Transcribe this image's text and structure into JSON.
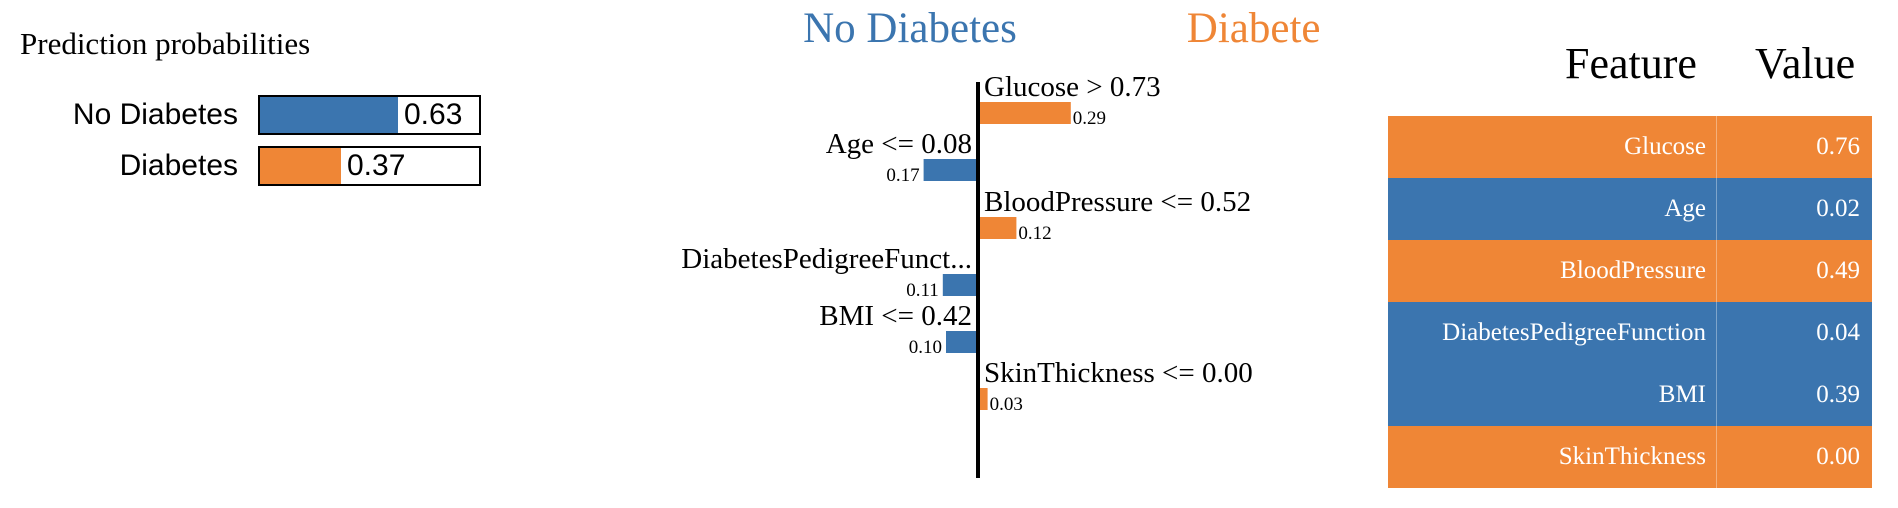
{
  "colors": {
    "no_diabetes": "#3b75af",
    "diabetes": "#ef8636"
  },
  "proba": {
    "title": "Prediction probabilities",
    "rows": [
      {
        "label": "No Diabetes",
        "value": 0.63,
        "value_text": "0.63",
        "color": "#3b75af"
      },
      {
        "label": "Diabetes",
        "value": 0.37,
        "value_text": "0.37",
        "color": "#ef8636"
      }
    ]
  },
  "explanation": {
    "left_class": "No Diabetes",
    "right_class": "Diabetes"
  },
  "chart_data": {
    "type": "bar",
    "orientation": "horizontal",
    "categories": [
      "Glucose > 0.73",
      "Age <= 0.08",
      "BloodPressure <= 0.52",
      "DiabetesPedigreeFunct...",
      "BMI <= 0.42",
      "SkinThickness <= 0.00"
    ],
    "values": [
      0.29,
      -0.17,
      0.12,
      -0.11,
      -0.1,
      0.03
    ],
    "value_labels": [
      "0.29",
      "0.17",
      "0.12",
      "0.11",
      "0.10",
      "0.03"
    ],
    "sides": [
      "Diabetes",
      "No Diabetes",
      "Diabetes",
      "No Diabetes",
      "No Diabetes",
      "Diabetes"
    ]
  },
  "table": {
    "headers": [
      "Feature",
      "Value"
    ],
    "rows": [
      {
        "feature": "Glucose",
        "value": "0.76",
        "color": "#ef8636"
      },
      {
        "feature": "Age",
        "value": "0.02",
        "color": "#3b75af"
      },
      {
        "feature": "BloodPressure",
        "value": "0.49",
        "color": "#ef8636"
      },
      {
        "feature": "DiabetesPedigreeFunction",
        "value": "0.04",
        "color": "#3b75af"
      },
      {
        "feature": "BMI",
        "value": "0.39",
        "color": "#3b75af"
      },
      {
        "feature": "SkinThickness",
        "value": "0.00",
        "color": "#ef8636"
      }
    ]
  }
}
